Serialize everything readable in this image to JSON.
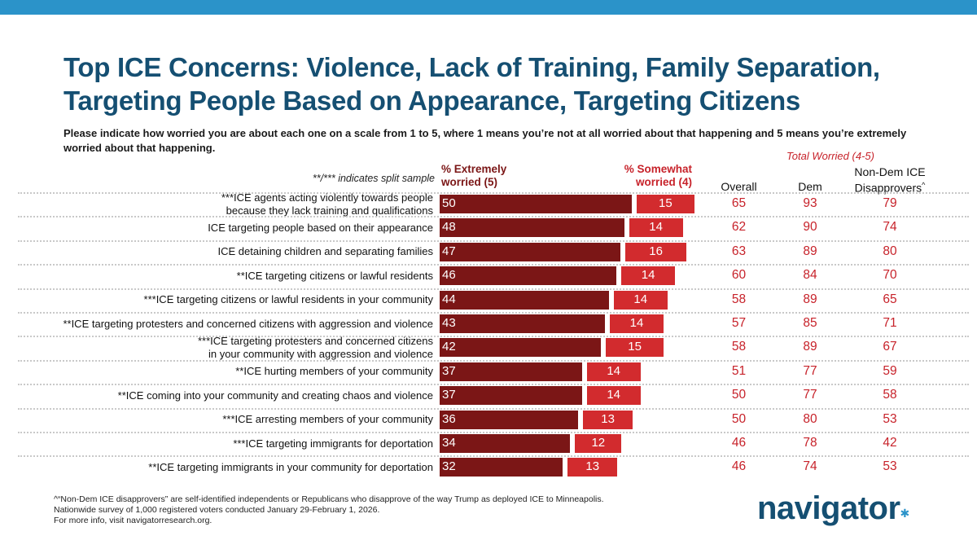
{
  "title_line1": "Top ICE Concerns: Violence, Lack of Training, Family Separation,",
  "title_line2": "Targeting People Based on Appearance, Targeting Citizens",
  "subtitle": "Please indicate how worried you are about each one on a scale from 1 to 5, where 1 means you’re not at all worried about that happening and 5 means you’re extremely worried about that happening.",
  "split_note": "**/*** indicates split sample",
  "footnote": {
    "line1": "^“Non-Dem ICE disapprovers” are self-identified independents or Republicans who disapprove of the way Trump as deployed ICE to Minneapolis.",
    "line2": "Nationwide survey of 1,000 registered voters conducted January 29-February 1, 2026.",
    "line3": "For more info, visit navigatorresearch.org."
  },
  "logo": "navigator",
  "colors": {
    "extremely": "#7b1616",
    "somewhat": "#d22b2e",
    "title": "#154f72",
    "accent": "#2b93c9",
    "number": "#c7222a"
  },
  "chart_data": {
    "type": "bar",
    "orientation": "horizontal-stacked",
    "series_labels": {
      "extremely": "% Extremely worried (5)",
      "somewhat": "% Somewhat worried (4)"
    },
    "total_worried_label": "Total Worried (4-5)",
    "columns": {
      "overall": "Overall",
      "dem": "Dem",
      "nondem": "Non-Dem ICE Disapprovers",
      "nondem_sup": "^"
    },
    "rows": [
      {
        "label": [
          "***ICE agents acting violently towards people",
          "because they lack training and qualifications"
        ],
        "extremely": 50,
        "somewhat": 15,
        "overall": 65,
        "dem": 93,
        "nondem": 79
      },
      {
        "label": [
          "ICE targeting people based on their appearance"
        ],
        "extremely": 48,
        "somewhat": 14,
        "overall": 62,
        "dem": 90,
        "nondem": 74
      },
      {
        "label": [
          "ICE detaining children and separating families"
        ],
        "extremely": 47,
        "somewhat": 16,
        "overall": 63,
        "dem": 89,
        "nondem": 80
      },
      {
        "label": [
          "**ICE targeting citizens or lawful residents"
        ],
        "extremely": 46,
        "somewhat": 14,
        "overall": 60,
        "dem": 84,
        "nondem": 70
      },
      {
        "label": [
          "***ICE targeting citizens or lawful residents in your community"
        ],
        "extremely": 44,
        "somewhat": 14,
        "overall": 58,
        "dem": 89,
        "nondem": 65
      },
      {
        "label": [
          "**ICE targeting protesters and concerned citizens with aggression and violence"
        ],
        "extremely": 43,
        "somewhat": 14,
        "overall": 57,
        "dem": 85,
        "nondem": 71
      },
      {
        "label": [
          "***ICE targeting protesters and concerned citizens",
          "in your community with aggression and violence"
        ],
        "extremely": 42,
        "somewhat": 15,
        "overall": 58,
        "dem": 89,
        "nondem": 67
      },
      {
        "label": [
          "**ICE hurting members of your community"
        ],
        "extremely": 37,
        "somewhat": 14,
        "overall": 51,
        "dem": 77,
        "nondem": 59
      },
      {
        "label": [
          "**ICE coming into your community and creating chaos and violence"
        ],
        "extremely": 37,
        "somewhat": 14,
        "overall": 50,
        "dem": 77,
        "nondem": 58
      },
      {
        "label": [
          "***ICE arresting members of your community"
        ],
        "extremely": 36,
        "somewhat": 13,
        "overall": 50,
        "dem": 80,
        "nondem": 53
      },
      {
        "label": [
          "***ICE targeting immigrants for deportation"
        ],
        "extremely": 34,
        "somewhat": 12,
        "overall": 46,
        "dem": 78,
        "nondem": 42
      },
      {
        "label": [
          "**ICE targeting immigrants in your community for deportation"
        ],
        "extremely": 32,
        "somewhat": 13,
        "overall": 46,
        "dem": 74,
        "nondem": 53
      }
    ]
  }
}
